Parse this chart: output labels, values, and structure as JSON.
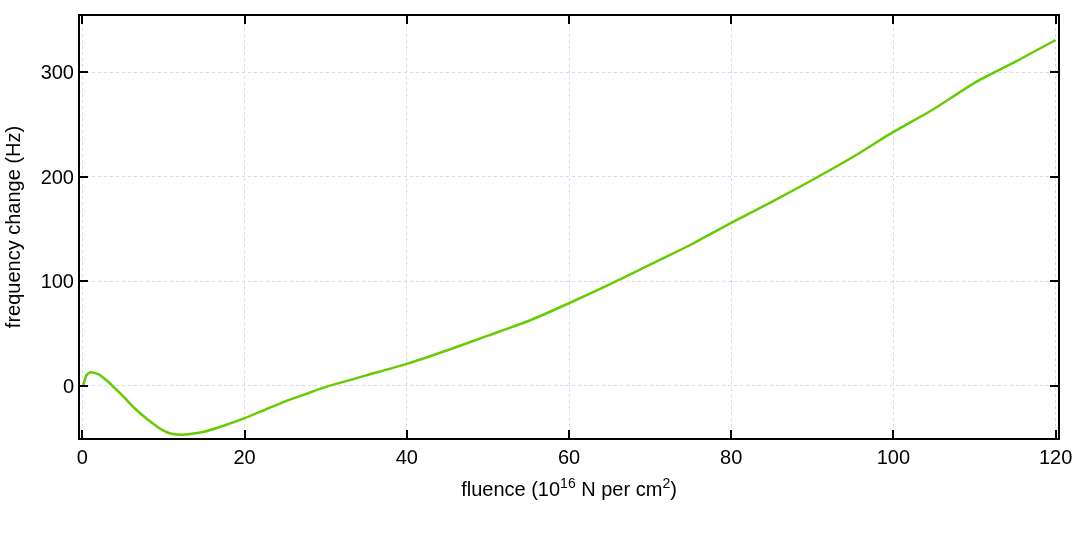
{
  "chart_data": {
    "type": "line",
    "xlabel": "fluence (10$^{16}$ N per cm$^{2}$)",
    "ylabel": "frequency change (Hz)",
    "series": [
      {
        "color": "#66cc00",
        "x": [
          0.1,
          0.5,
          1,
          2,
          3,
          5,
          6.5,
          8,
          10,
          11,
          12.2,
          13.5,
          15,
          17.5,
          20,
          22.5,
          25,
          27.5,
          30,
          32.3,
          35,
          40,
          45,
          50,
          55,
          60,
          65,
          70,
          75,
          80,
          85,
          90,
          95,
          100,
          105,
          110,
          115,
          120
        ],
        "values": [
          0,
          10,
          13,
          11,
          5,
          -10,
          -22,
          -32,
          -43,
          -46,
          -47,
          -46,
          -44,
          -38,
          -31,
          -23,
          -15,
          -8,
          -1,
          4,
          10,
          21,
          34,
          48,
          62,
          79,
          97,
          116,
          135,
          156,
          176,
          197,
          219,
          243,
          265,
          290,
          310,
          331
        ]
      }
    ],
    "xlim": [
      -0.3,
      120.3
    ],
    "xticks": [
      0,
      20,
      40,
      60,
      80,
      100,
      120
    ],
    "ylim": [
      -50,
      354
    ],
    "yticks": [
      0,
      100,
      200,
      300
    ],
    "grid": true,
    "legend": false
  }
}
